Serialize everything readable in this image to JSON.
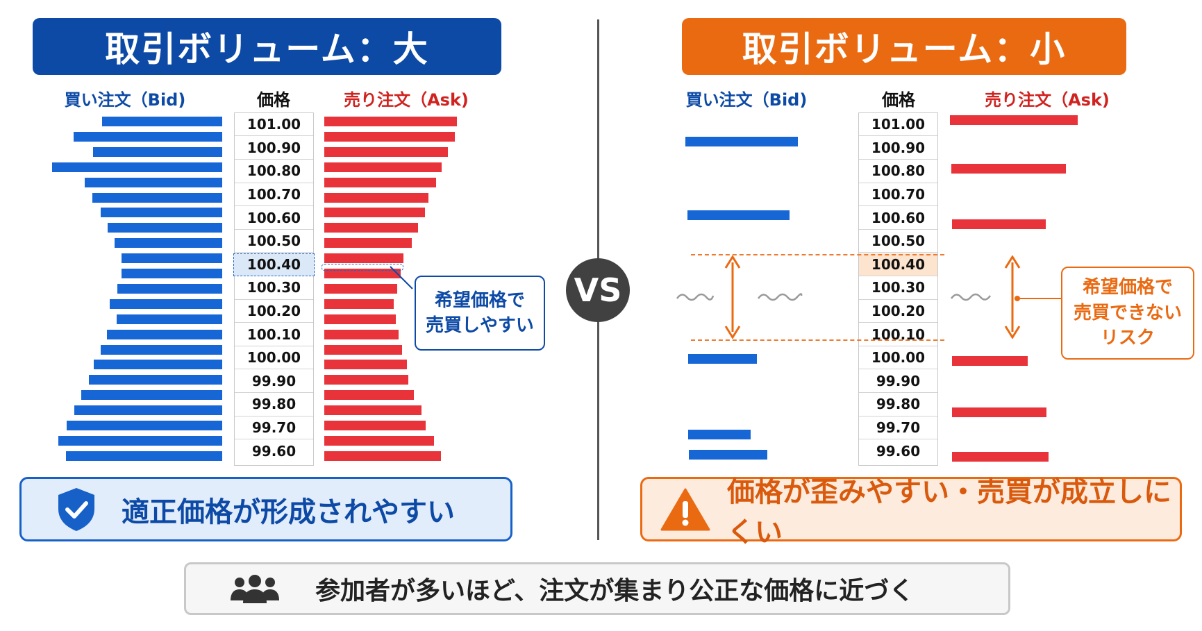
{
  "left_panel": {
    "title": "取引ボリューム：大",
    "bid_header": "買い注文（Bid)",
    "price_header": "価格",
    "ask_header": "売り注文（Ask)",
    "prices": [
      "101.00",
      "100.90",
      "100.80",
      "100.70",
      "100.60",
      "100.50",
      "100.40",
      "100.30",
      "100.20",
      "100.10",
      "100.00",
      "99.90",
      "99.80",
      "99.70",
      "99.60"
    ],
    "highlight_price": "100.40",
    "callout": [
      "希望価格で",
      "売買しやすい"
    ],
    "result": "適正価格が形成されやすい",
    "result_icon": "shield-check-icon"
  },
  "right_panel": {
    "title": "取引ボリューム：小",
    "bid_header": "買い注文（Bid)",
    "price_header": "価格",
    "ask_header": "売り注文（Ask)",
    "prices": [
      "101.00",
      "100.90",
      "100.80",
      "100.70",
      "100.60",
      "100.50",
      "100.40",
      "100.30",
      "100.20",
      "100.10",
      "100.00",
      "99.90",
      "99.80",
      "99.70",
      "99.60"
    ],
    "highlight_price": "100.40",
    "callout": [
      "希望価格で",
      "売買できない",
      "リスク"
    ],
    "result": "価格が歪みやすい・売買が成立しにくい",
    "result_icon": "warning-icon"
  },
  "vs_label": "VS",
  "bottom_note": "参加者が多いほど、注文が集まり公正な価格に近づく",
  "bottom_icon": "people-icon",
  "colors": {
    "blue_dark": "#0d4aa6",
    "orange": "#ea6a12",
    "bid": "#1766d6",
    "ask": "#e8333a"
  }
}
